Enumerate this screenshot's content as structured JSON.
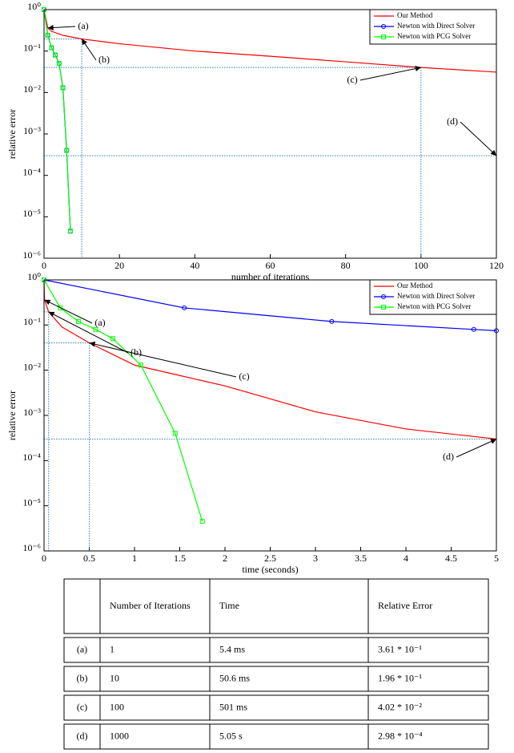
{
  "chart_data": [
    {
      "type": "line",
      "xlabel": "number of iterations",
      "ylabel": "relative error",
      "xlim": [
        0,
        120
      ],
      "xticks": [
        0,
        20,
        40,
        60,
        80,
        100,
        120
      ],
      "ylim": [
        1e-06,
        1
      ],
      "log_y": true,
      "yticks": [
        {
          "value": 1e-06,
          "label": "10⁻⁶"
        },
        {
          "value": 1e-05,
          "label": "10⁻⁵"
        },
        {
          "value": 0.0001,
          "label": "10⁻⁴"
        },
        {
          "value": 0.001,
          "label": "10⁻³"
        },
        {
          "value": 0.01,
          "label": "10⁻²"
        },
        {
          "value": 0.1,
          "label": "10⁻¹"
        },
        {
          "value": 1,
          "label": "10⁰"
        }
      ],
      "legend": "upper right",
      "series": [
        {
          "name": "Our Method",
          "color": "#ff0000",
          "marker": "none",
          "x": [
            0,
            1,
            2,
            5,
            10,
            20,
            40,
            60,
            80,
            100,
            120
          ],
          "values": [
            1,
            0.361,
            0.3,
            0.24,
            0.196,
            0.15,
            0.1,
            0.075,
            0.055,
            0.0402,
            0.031
          ]
        },
        {
          "name": "Newton with Direct Solver",
          "color": "#0000ff",
          "marker": "circle",
          "x": [
            0,
            1,
            2,
            3,
            4,
            5,
            6,
            7
          ],
          "values": [
            1,
            0.24,
            0.12,
            0.08,
            0.05,
            0.013,
            0.0004,
            4.5e-06
          ]
        },
        {
          "name": "Newton with PCG Solver",
          "color": "#00ff00",
          "marker": "square",
          "x": [
            0,
            1,
            2,
            3,
            4,
            5,
            6,
            7
          ],
          "values": [
            1,
            0.24,
            0.12,
            0.08,
            0.05,
            0.013,
            0.0004,
            4.5e-06
          ]
        }
      ],
      "annotations": [
        {
          "text": "(a)",
          "x": 1,
          "y": 0.361,
          "guide": false
        },
        {
          "text": "(b)",
          "x": 10,
          "y": 0.196,
          "guide": true
        },
        {
          "text": "(c)",
          "x": 100,
          "y": 0.0402,
          "guide": true
        },
        {
          "text": "(d)",
          "x": 120,
          "y": 0.000298,
          "guide": true
        }
      ]
    },
    {
      "type": "line",
      "xlabel": "time (seconds)",
      "ylabel": "relative error",
      "xlim": [
        0,
        5
      ],
      "xticks": [
        0,
        0.5,
        1,
        1.5,
        2,
        2.5,
        3,
        3.5,
        4,
        4.5,
        5
      ],
      "ylim": [
        1e-06,
        1
      ],
      "log_y": true,
      "yticks": [
        {
          "value": 1e-06,
          "label": "10⁻⁶"
        },
        {
          "value": 1e-05,
          "label": "10⁻⁵"
        },
        {
          "value": 0.0001,
          "label": "10⁻⁴"
        },
        {
          "value": 0.001,
          "label": "10⁻³"
        },
        {
          "value": 0.01,
          "label": "10⁻²"
        },
        {
          "value": 0.1,
          "label": "10⁻¹"
        },
        {
          "value": 1,
          "label": "10⁰"
        }
      ],
      "legend": "upper right",
      "series": [
        {
          "name": "Our Method",
          "color": "#ff0000",
          "marker": "none",
          "x": [
            0,
            0.0054,
            0.0506,
            0.2,
            0.501,
            1,
            2,
            3,
            4,
            5
          ],
          "values": [
            1,
            0.361,
            0.196,
            0.09,
            0.0402,
            0.013,
            0.0045,
            0.0012,
            0.0005,
            0.0003
          ]
        },
        {
          "name": "Newton with Direct Solver",
          "color": "#0000ff",
          "marker": "circle",
          "x": [
            0,
            1.55,
            3.18,
            4.75,
            5
          ],
          "values": [
            1,
            0.24,
            0.12,
            0.08,
            0.075
          ]
        },
        {
          "name": "Newton with PCG Solver",
          "color": "#00ff00",
          "marker": "square",
          "x": [
            0,
            0.18,
            0.38,
            0.57,
            0.76,
            1.07,
            1.45,
            1.75
          ],
          "values": [
            1,
            0.24,
            0.12,
            0.08,
            0.05,
            0.013,
            0.0004,
            4.5e-06
          ]
        }
      ],
      "annotations": [
        {
          "text": "(a)",
          "x": 0.0054,
          "y": 0.361,
          "guide": false
        },
        {
          "text": "(b)",
          "x": 0.0506,
          "y": 0.196,
          "guide": true
        },
        {
          "text": "(c)",
          "x": 0.501,
          "y": 0.0402,
          "guide": true
        },
        {
          "text": "(d)",
          "x": 5,
          "y": 0.000298,
          "guide": true
        }
      ]
    }
  ],
  "table": {
    "header": [
      "Number of Iterations",
      "Time",
      "Relative Error"
    ],
    "rows": [
      [
        "(a)",
        "1",
        "5.4 ms",
        "3.61 * 10⁻¹"
      ],
      [
        "(b)",
        "10",
        "50.6 ms",
        "1.96 * 10⁻¹"
      ],
      [
        "(c)",
        "100",
        "501 ms",
        "4.02 * 10⁻²"
      ],
      [
        "(d)",
        "1000",
        "5.05 s",
        "2.98 * 10⁻⁴"
      ]
    ]
  }
}
